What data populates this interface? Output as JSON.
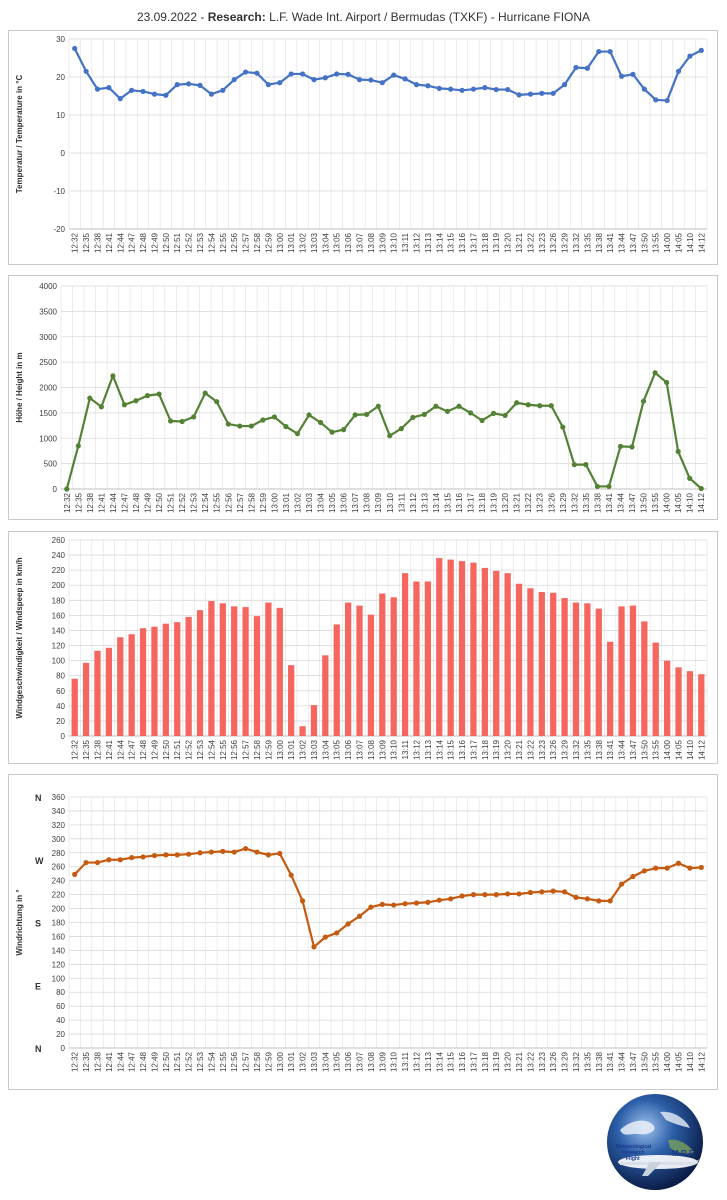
{
  "page": {
    "title_date": "23.09.2022 -",
    "title_bold": "Research:",
    "title_rest": "L.F. Wade Int. Airport / Bermudas (TXKF) - Hurricane FIONA"
  },
  "times": [
    "12:32",
    "12:35",
    "12:38",
    "12:41",
    "12:44",
    "12:47",
    "12:48",
    "12:49",
    "12:50",
    "12:51",
    "12:52",
    "12:53",
    "12:54",
    "12:55",
    "12:56",
    "12:57",
    "12:58",
    "12:59",
    "13:00",
    "13:01",
    "13:02",
    "13:03",
    "13:04",
    "13:05",
    "13:06",
    "13:07",
    "13:08",
    "13:09",
    "13:10",
    "13:11",
    "13:12",
    "13:13",
    "13:14",
    "13:15",
    "13:16",
    "13:17",
    "13:18",
    "13:19",
    "13:20",
    "13:21",
    "13:22",
    "13:23",
    "13:26",
    "13:29",
    "13:32",
    "13:35",
    "13:38",
    "13:41",
    "13:44",
    "13:47",
    "13:50",
    "13:55",
    "14:00",
    "14:05",
    "14:10",
    "14:12"
  ],
  "chart_data": [
    {
      "type": "line",
      "title": "",
      "ylabel": "Temperatur / Temperature in °C",
      "color": "#4472c4",
      "ylim": [
        -20,
        30
      ],
      "yticks": [
        -20,
        -10,
        0,
        10,
        20,
        30
      ],
      "grid": true,
      "categories_per_label": 2,
      "values": [
        27.5,
        21.5,
        16.8,
        17.2,
        14.3,
        16.5,
        16.2,
        15.5,
        15.2,
        18.0,
        18.2,
        17.8,
        15.5,
        16.5,
        19.3,
        21.3,
        21.0,
        18.0,
        18.5,
        20.8,
        20.8,
        19.3,
        19.8,
        20.8,
        20.7,
        19.3,
        19.2,
        18.5,
        20.5,
        19.5,
        18.0,
        17.7,
        17.0,
        16.8,
        16.5,
        16.8,
        17.2,
        16.7,
        16.7,
        15.3,
        15.5,
        15.7,
        15.7,
        18.0,
        22.5,
        22.3,
        26.7,
        26.7,
        20.2,
        20.7,
        16.8,
        14.0,
        13.8,
        21.5,
        25.5,
        27.0
      ]
    },
    {
      "type": "line",
      "title": "",
      "ylabel": "Höhe / Height in m",
      "color": "#548235",
      "ylim": [
        0,
        4000
      ],
      "yticks": [
        0,
        500,
        1000,
        1500,
        2000,
        2500,
        3000,
        3500,
        4000
      ],
      "grid": true,
      "values": [
        0,
        850,
        1790,
        1620,
        2230,
        1660,
        1740,
        1840,
        1870,
        1340,
        1330,
        1420,
        1890,
        1720,
        1280,
        1240,
        1240,
        1360,
        1420,
        1230,
        1090,
        1460,
        1310,
        1120,
        1170,
        1460,
        1470,
        1630,
        1050,
        1190,
        1410,
        1470,
        1630,
        1530,
        1630,
        1500,
        1350,
        1490,
        1450,
        1700,
        1660,
        1640,
        1640,
        1220,
        480,
        480,
        50,
        50,
        840,
        830,
        1730,
        2290,
        2100,
        740,
        210,
        10
      ]
    },
    {
      "type": "bar",
      "title": "",
      "ylabel": "Windgeschwindigkeit / Windspeep in km/h",
      "color": "#f4665e",
      "ylim": [
        0,
        260
      ],
      "yticks": [
        0,
        20,
        40,
        60,
        80,
        100,
        120,
        140,
        160,
        180,
        200,
        220,
        240,
        260
      ],
      "grid": true,
      "values": [
        76,
        97,
        113,
        117,
        131,
        135,
        143,
        145,
        149,
        151,
        158,
        167,
        179,
        176,
        172,
        171,
        159,
        177,
        170,
        94,
        13,
        41,
        107,
        148,
        177,
        173,
        161,
        189,
        184,
        216,
        205,
        205,
        236,
        234,
        232,
        230,
        223,
        219,
        216,
        202,
        196,
        191,
        190,
        183,
        177,
        176,
        169,
        125,
        172,
        173,
        152,
        124,
        100,
        91,
        86,
        82
      ]
    },
    {
      "type": "line",
      "title": "",
      "ylabel": "Windrichtung in °",
      "color": "#c55a11",
      "ylim": [
        0,
        360
      ],
      "yticks": [
        0,
        20,
        40,
        60,
        80,
        100,
        120,
        140,
        160,
        180,
        200,
        220,
        240,
        260,
        280,
        300,
        320,
        340,
        360
      ],
      "grid": true,
      "direction_labels": [
        {
          "label": "N",
          "value": 360
        },
        {
          "label": "W",
          "value": 270
        },
        {
          "label": "S",
          "value": 180
        },
        {
          "label": "E",
          "value": 90
        },
        {
          "label": "N",
          "value": 0
        }
      ],
      "values": [
        249,
        266,
        266,
        270,
        270,
        273,
        274,
        276,
        277,
        277,
        278,
        280,
        281,
        282,
        281,
        286,
        281,
        277,
        279,
        248,
        211,
        145,
        159,
        165,
        178,
        189,
        202,
        206,
        205,
        207,
        208,
        209,
        212,
        214,
        218,
        220,
        220,
        220,
        221,
        221,
        223,
        224,
        225,
        224,
        216,
        214,
        211,
        211,
        235,
        246,
        254,
        258,
        258,
        265,
        258,
        259
      ]
    }
  ],
  "logo": {
    "line1": "Meteorological",
    "line2": "Research",
    "line3": "Flight",
    "brand": "M.R.F."
  }
}
